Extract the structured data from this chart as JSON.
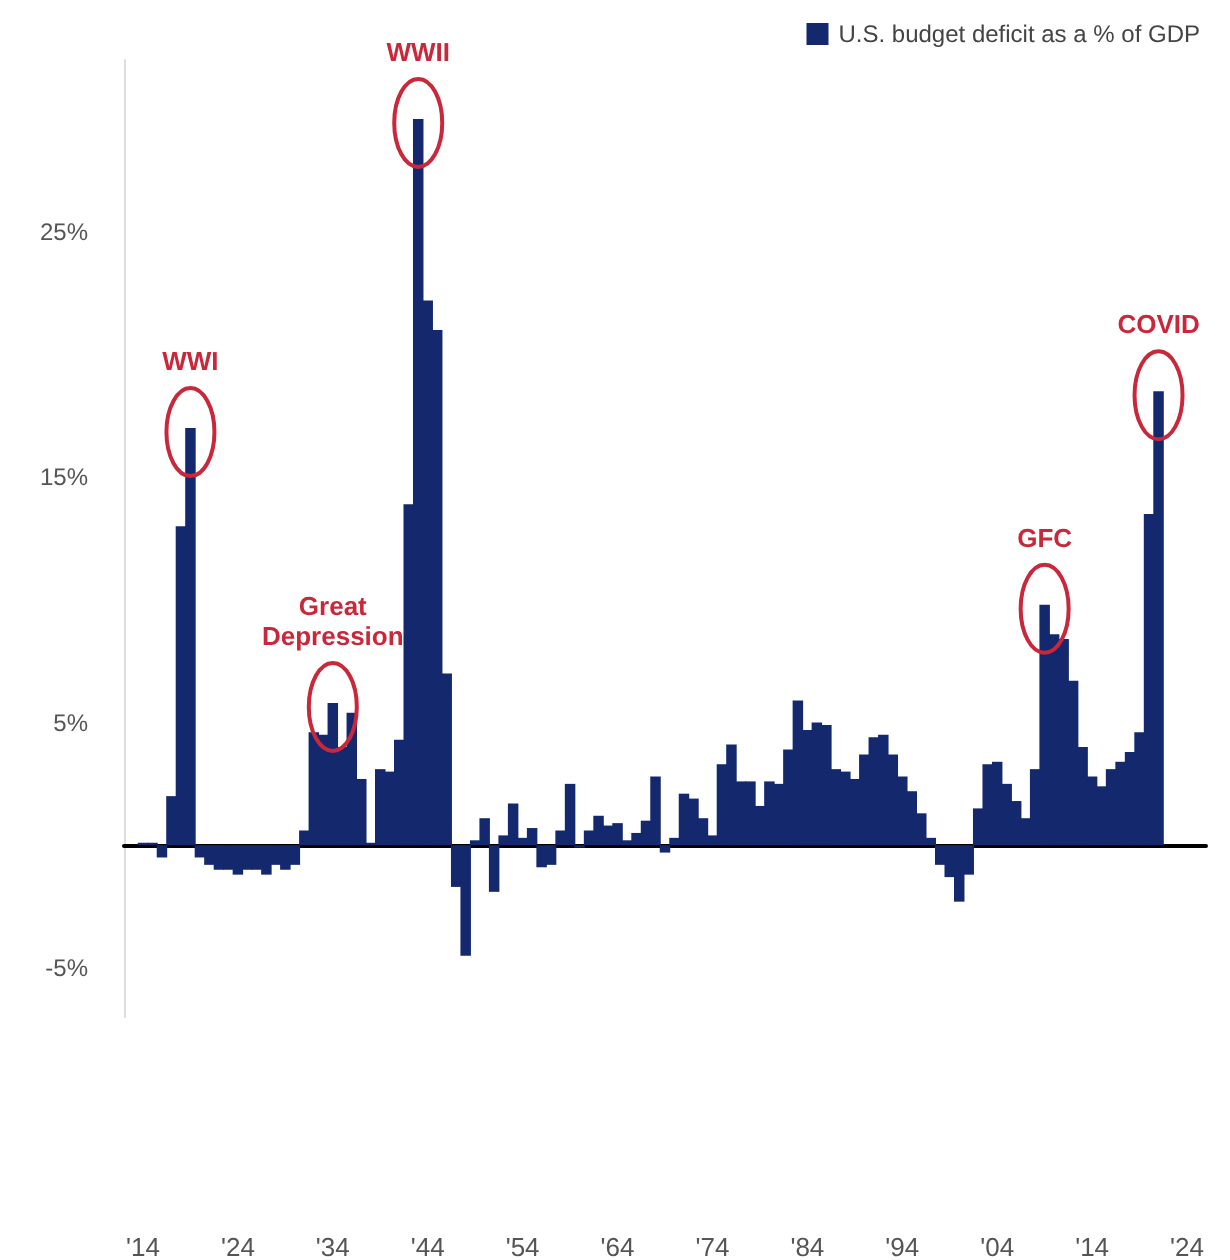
{
  "chart_data": {
    "type": "bar",
    "legend": "top right",
    "grid": false,
    "x": [
      1914,
      1915,
      1916,
      1917,
      1918,
      1919,
      1920,
      1921,
      1922,
      1923,
      1924,
      1925,
      1926,
      1927,
      1928,
      1929,
      1930,
      1931,
      1932,
      1933,
      1934,
      1935,
      1936,
      1937,
      1938,
      1939,
      1940,
      1941,
      1942,
      1943,
      1944,
      1945,
      1946,
      1947,
      1948,
      1949,
      1950,
      1951,
      1952,
      1953,
      1954,
      1955,
      1956,
      1957,
      1958,
      1959,
      1960,
      1961,
      1962,
      1963,
      1964,
      1965,
      1966,
      1967,
      1968,
      1969,
      1970,
      1971,
      1972,
      1973,
      1974,
      1975,
      1976,
      1977,
      1978,
      1979,
      1980,
      1981,
      1982,
      1983,
      1984,
      1985,
      1986,
      1987,
      1988,
      1989,
      1990,
      1991,
      1992,
      1993,
      1994,
      1995,
      1996,
      1997,
      1998,
      1999,
      2000,
      2001,
      2002,
      2003,
      2004,
      2005,
      2006,
      2007,
      2008,
      2009,
      2010,
      2011,
      2012,
      2013,
      2014,
      2015,
      2016,
      2017,
      2018,
      2019,
      2020,
      2021
    ],
    "series": [
      {
        "name": "U.S. budget deficit as a % of GDP",
        "color": "#14286e",
        "values": [
          0.1,
          0.1,
          -0.5,
          2.0,
          13.0,
          17.0,
          -0.5,
          -0.8,
          -1.0,
          -1.0,
          -1.2,
          -1.0,
          -1.0,
          -1.2,
          -0.8,
          -1.0,
          -0.8,
          0.6,
          4.6,
          4.5,
          5.8,
          4.0,
          5.4,
          2.7,
          0.1,
          3.1,
          3.0,
          4.3,
          13.9,
          29.6,
          22.2,
          21.0,
          7.0,
          -1.7,
          -4.5,
          0.2,
          1.1,
          -1.9,
          0.4,
          1.7,
          0.3,
          0.7,
          -0.9,
          -0.8,
          0.6,
          2.5,
          -0.1,
          0.6,
          1.2,
          0.8,
          0.9,
          0.2,
          0.5,
          1.0,
          2.8,
          -0.3,
          0.3,
          2.1,
          1.9,
          1.1,
          0.4,
          3.3,
          4.1,
          2.6,
          2.6,
          1.6,
          2.6,
          2.5,
          3.9,
          5.9,
          4.7,
          5.0,
          4.9,
          3.1,
          3.0,
          2.7,
          3.7,
          4.4,
          4.5,
          3.7,
          2.8,
          2.2,
          1.3,
          0.3,
          -0.8,
          -1.3,
          -2.3,
          -1.2,
          1.5,
          3.3,
          3.4,
          2.5,
          1.8,
          1.1,
          3.1,
          9.8,
          8.6,
          8.4,
          6.7,
          4.0,
          2.8,
          2.4,
          3.1,
          3.4,
          3.8,
          4.6,
          13.5,
          18.5
        ]
      }
    ],
    "xlim": [
      1912,
      2026
    ],
    "xticks": [
      {
        "value": 1914,
        "label": "'14"
      },
      {
        "value": 1924,
        "label": "'24"
      },
      {
        "value": 1934,
        "label": "'34"
      },
      {
        "value": 1944,
        "label": "'44"
      },
      {
        "value": 1954,
        "label": "'54"
      },
      {
        "value": 1964,
        "label": "'64"
      },
      {
        "value": 1974,
        "label": "'74"
      },
      {
        "value": 1984,
        "label": "'84"
      },
      {
        "value": 1994,
        "label": "'94"
      },
      {
        "value": 2004,
        "label": "'04"
      },
      {
        "value": 2014,
        "label": "'14"
      },
      {
        "value": 2024,
        "label": "'24"
      }
    ],
    "ylim": [
      -7,
      32
    ],
    "yticks": [
      {
        "value": -5,
        "label": "-5%"
      },
      {
        "value": 5,
        "label": "5%"
      },
      {
        "value": 15,
        "label": "15%"
      },
      {
        "value": 25,
        "label": "25%"
      }
    ],
    "annotations": [
      {
        "text": "WWI",
        "x": 1919,
        "y": 17
      },
      {
        "text": "Great\nDepression",
        "x": 1934,
        "y": 5.8
      },
      {
        "text": "WWII",
        "x": 1943,
        "y": 29.6
      },
      {
        "text": "GFC",
        "x": 2009,
        "y": 9.8
      },
      {
        "text": "COVID",
        "x": 2021,
        "y": 18.5
      }
    ]
  }
}
